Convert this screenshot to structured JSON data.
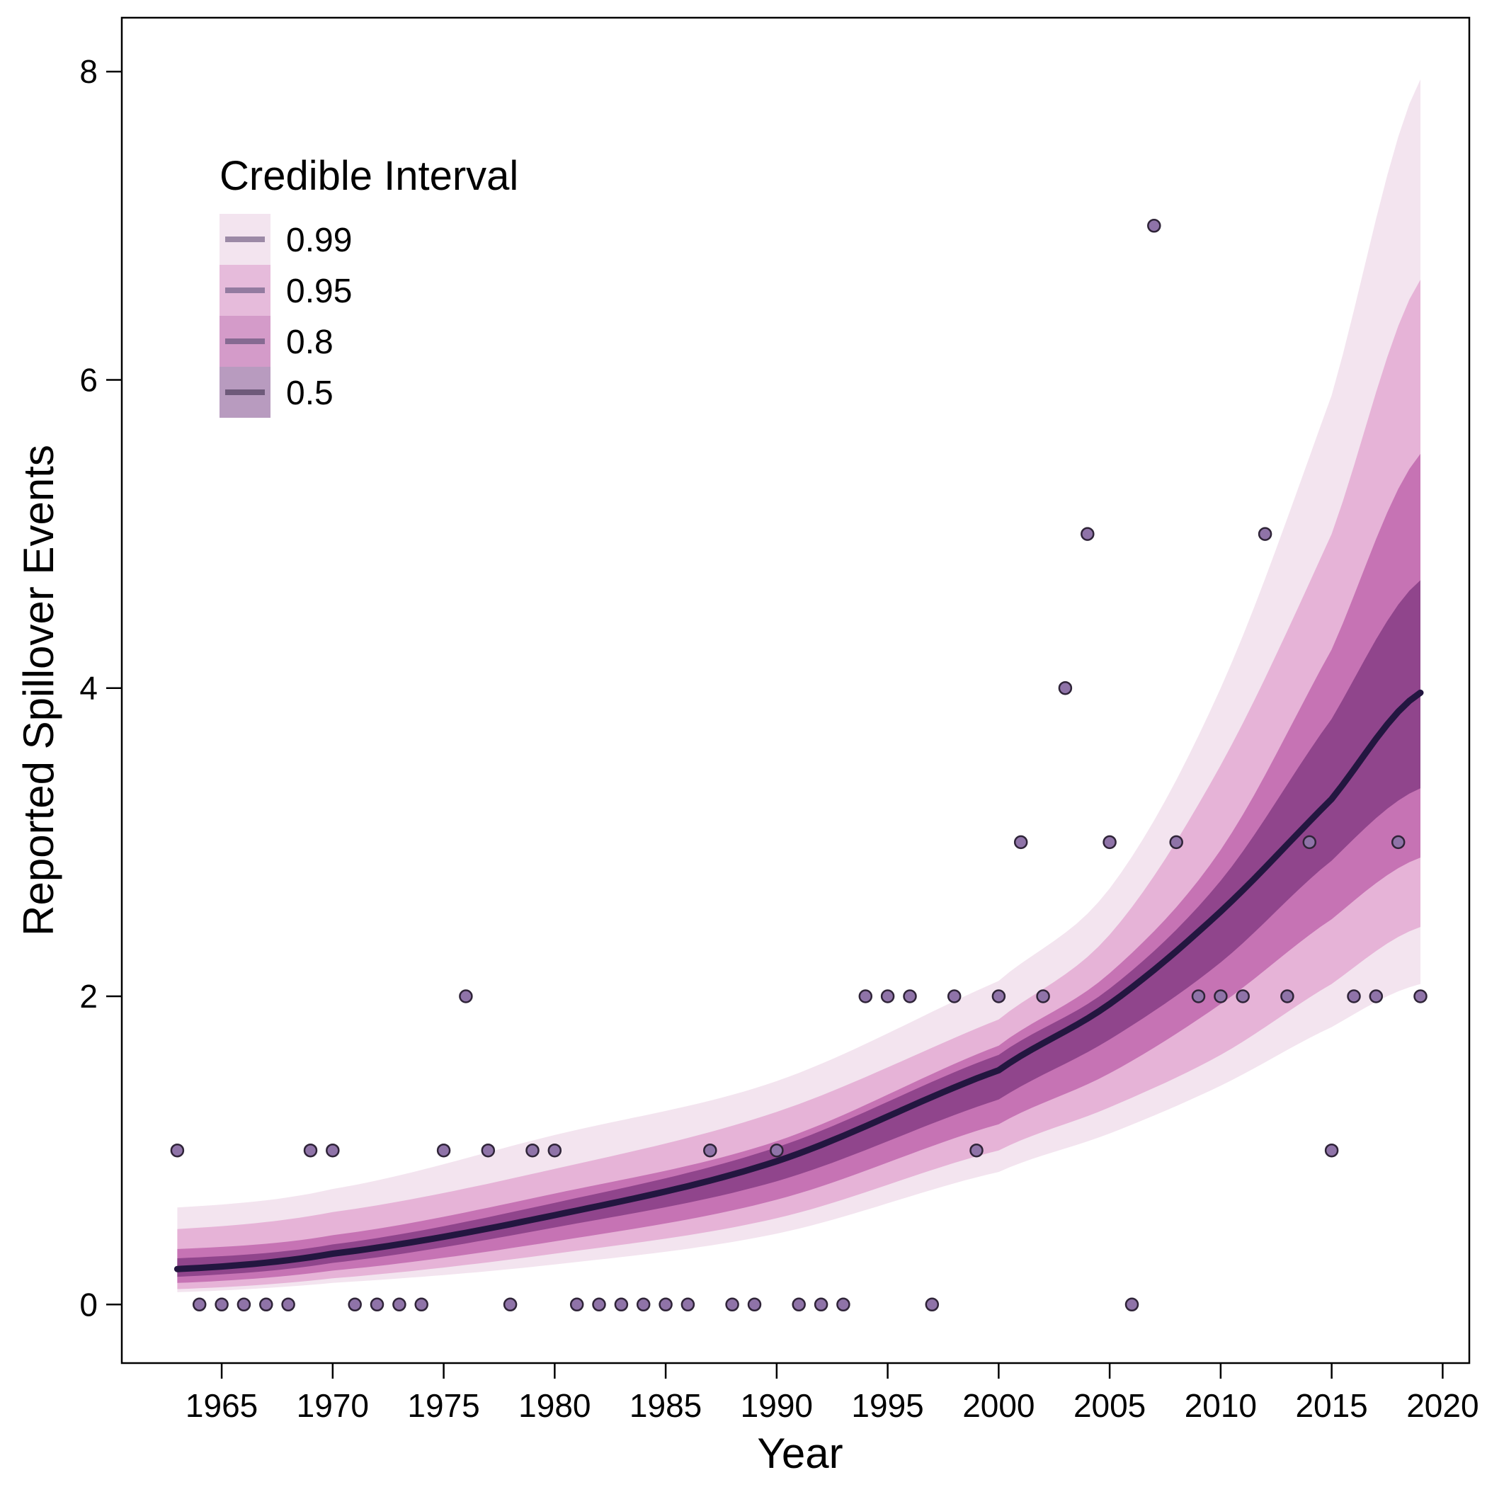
{
  "chart_data": {
    "type": "scatter",
    "xlabel": "Year",
    "ylabel": "Reported Spillover Events",
    "xlim": [
      1960.5,
      2021.2
    ],
    "ylim": [
      -0.38,
      8.35
    ],
    "x_ticks": [
      1965,
      1970,
      1975,
      1980,
      1985,
      1990,
      1995,
      2000,
      2005,
      2010,
      2015,
      2020
    ],
    "y_ticks": [
      0,
      2,
      4,
      6,
      8
    ],
    "grid": false,
    "legend": {
      "title": "Credible Interval",
      "placement": "top-left",
      "entries": [
        {
          "label": "0.99",
          "band_color": "#f3e4ef",
          "line_color": "#9c89a6"
        },
        {
          "label": "0.95",
          "band_color": "#e6bbdb",
          "line_color": "#937ba0"
        },
        {
          "label": "0.8",
          "band_color": "#d49bc9",
          "line_color": "#866a92"
        },
        {
          "label": "0.5",
          "band_color": "#b89bbf",
          "line_color": "#6e5a7a"
        }
      ]
    },
    "observed": {
      "years": [
        1963,
        1964,
        1965,
        1966,
        1967,
        1968,
        1969,
        1970,
        1971,
        1972,
        1973,
        1974,
        1975,
        1976,
        1977,
        1978,
        1979,
        1980,
        1981,
        1982,
        1983,
        1984,
        1985,
        1986,
        1987,
        1988,
        1989,
        1990,
        1991,
        1992,
        1993,
        1994,
        1995,
        1996,
        1997,
        1998,
        1999,
        2000,
        2001,
        2002,
        2003,
        2004,
        2005,
        2006,
        2007,
        2008,
        2009,
        2010,
        2011,
        2012,
        2013,
        2014,
        2015,
        2016,
        2017,
        2018,
        2019
      ],
      "values": [
        1,
        0,
        0,
        0,
        0,
        0,
        1,
        1,
        0,
        0,
        0,
        0,
        1,
        2,
        1,
        0,
        1,
        1,
        0,
        0,
        0,
        0,
        0,
        0,
        1,
        0,
        0,
        1,
        0,
        0,
        0,
        2,
        2,
        2,
        0,
        2,
        1,
        2,
        3,
        2,
        4,
        5,
        3,
        0,
        7,
        3,
        2,
        2,
        2,
        5,
        2,
        3,
        1,
        2,
        2,
        3,
        2
      ],
      "point_color": "#8f73a8",
      "point_stroke": "#2f2438"
    },
    "fit": {
      "x": [
        1963,
        1970,
        1980,
        1990,
        2000,
        2005,
        2010,
        2015,
        2019
      ],
      "median": [
        0.23,
        0.33,
        0.58,
        0.93,
        1.52,
        1.95,
        2.55,
        3.28,
        3.97
      ],
      "line_color": "#231640",
      "bands": [
        {
          "level": "0.99",
          "color": "#f3e4ef",
          "lower": [
            0.08,
            0.14,
            0.26,
            0.46,
            0.86,
            1.11,
            1.42,
            1.8,
            2.08
          ],
          "upper": [
            0.63,
            0.75,
            1.1,
            1.45,
            2.1,
            2.7,
            4.0,
            5.9,
            7.95
          ]
        },
        {
          "level": "0.95",
          "color": "#e6b3d7",
          "lower": [
            0.1,
            0.17,
            0.33,
            0.56,
            1.0,
            1.28,
            1.62,
            2.08,
            2.45
          ],
          "upper": [
            0.49,
            0.6,
            0.88,
            1.25,
            1.85,
            2.4,
            3.5,
            5.0,
            6.65
          ]
        },
        {
          "level": "0.8",
          "color": "#c673b4",
          "lower": [
            0.14,
            0.22,
            0.41,
            0.68,
            1.17,
            1.5,
            1.95,
            2.5,
            2.9
          ],
          "upper": [
            0.36,
            0.45,
            0.72,
            1.06,
            1.68,
            2.15,
            2.95,
            4.25,
            5.52
          ]
        },
        {
          "level": "0.5",
          "color": "#90458c",
          "lower": [
            0.18,
            0.27,
            0.5,
            0.8,
            1.33,
            1.72,
            2.22,
            2.88,
            3.35
          ],
          "upper": [
            0.3,
            0.39,
            0.66,
            1.02,
            1.62,
            2.05,
            2.75,
            3.8,
            4.7
          ]
        }
      ]
    }
  }
}
